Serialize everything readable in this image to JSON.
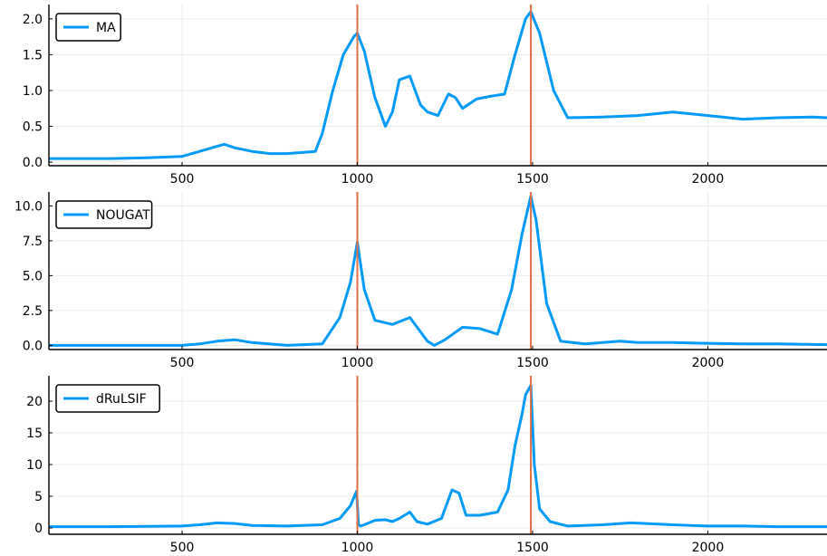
{
  "chart_data": [
    {
      "type": "line",
      "xlim": [
        120,
        2340
      ],
      "ylim": [
        -0.05,
        2.2
      ],
      "xticks": [
        500,
        1000,
        1500,
        2000
      ],
      "yticks": [
        0.0,
        0.5,
        1.0,
        1.5,
        2.0
      ],
      "ytick_labels": [
        "0.0",
        "0.5",
        "1.0",
        "1.5",
        "2.0"
      ],
      "grid": true,
      "legend_position": "top-left",
      "vlines": [
        1000,
        1495
      ],
      "vline_color": "#e26f46",
      "series": [
        {
          "name": "MA",
          "color": "#009af9",
          "x": [
            120,
            200,
            300,
            400,
            500,
            550,
            600,
            620,
            650,
            700,
            750,
            800,
            880,
            900,
            930,
            960,
            990,
            1000,
            1020,
            1050,
            1080,
            1100,
            1120,
            1150,
            1180,
            1200,
            1230,
            1260,
            1280,
            1300,
            1340,
            1380,
            1420,
            1450,
            1480,
            1495,
            1520,
            1560,
            1600,
            1700,
            1800,
            1900,
            2000,
            2100,
            2200,
            2300,
            2340
          ],
          "y": [
            0.05,
            0.05,
            0.05,
            0.06,
            0.08,
            0.15,
            0.22,
            0.25,
            0.2,
            0.15,
            0.12,
            0.12,
            0.15,
            0.4,
            1.0,
            1.5,
            1.75,
            1.8,
            1.55,
            0.9,
            0.5,
            0.7,
            1.15,
            1.2,
            0.8,
            0.7,
            0.65,
            0.95,
            0.9,
            0.75,
            0.88,
            0.92,
            0.95,
            1.5,
            2.0,
            2.1,
            1.8,
            1.0,
            0.62,
            0.63,
            0.65,
            0.7,
            0.65,
            0.6,
            0.62,
            0.63,
            0.62
          ]
        }
      ]
    },
    {
      "type": "line",
      "xlim": [
        120,
        2340
      ],
      "ylim": [
        -0.3,
        11.0
      ],
      "xticks": [
        500,
        1000,
        1500,
        2000
      ],
      "yticks": [
        0.0,
        2.5,
        5.0,
        7.5,
        10.0
      ],
      "ytick_labels": [
        "0.0",
        "2.5",
        "5.0",
        "7.5",
        "10.0"
      ],
      "grid": true,
      "legend_position": "top-left",
      "vlines": [
        1000,
        1495
      ],
      "vline_color": "#e26f46",
      "series": [
        {
          "name": "NOUGAT",
          "color": "#009af9",
          "x": [
            120,
            300,
            500,
            550,
            600,
            650,
            700,
            800,
            900,
            950,
            980,
            1000,
            1020,
            1050,
            1100,
            1150,
            1200,
            1220,
            1250,
            1300,
            1350,
            1400,
            1440,
            1470,
            1495,
            1510,
            1540,
            1580,
            1650,
            1750,
            1800,
            1900,
            2000,
            2100,
            2200,
            2340
          ],
          "y": [
            0.0,
            0.0,
            0.0,
            0.1,
            0.3,
            0.4,
            0.2,
            0.0,
            0.1,
            2.0,
            4.5,
            7.4,
            4.0,
            1.8,
            1.5,
            2.0,
            0.3,
            0.0,
            0.4,
            1.3,
            1.2,
            0.8,
            4.0,
            8.0,
            10.7,
            9.0,
            3.0,
            0.3,
            0.1,
            0.3,
            0.2,
            0.2,
            0.15,
            0.1,
            0.1,
            0.05
          ]
        }
      ]
    },
    {
      "type": "line",
      "xlim": [
        120,
        2340
      ],
      "ylim": [
        -1.0,
        24.0
      ],
      "xticks": [
        500,
        1000,
        1500,
        2000
      ],
      "yticks": [
        0,
        5,
        10,
        15,
        20
      ],
      "ytick_labels": [
        "0",
        "5",
        "10",
        "15",
        "20"
      ],
      "grid": true,
      "legend_position": "top-left",
      "vlines": [
        1000,
        1495
      ],
      "vline_color": "#e26f46",
      "series": [
        {
          "name": "dRuLSIF",
          "color": "#009af9",
          "x": [
            120,
            300,
            500,
            550,
            600,
            650,
            700,
            800,
            900,
            950,
            980,
            998,
            1003,
            1008,
            1020,
            1050,
            1080,
            1100,
            1120,
            1150,
            1170,
            1200,
            1240,
            1270,
            1290,
            1310,
            1330,
            1350,
            1400,
            1430,
            1450,
            1470,
            1480,
            1490,
            1495,
            1505,
            1520,
            1550,
            1600,
            1700,
            1780,
            1900,
            2000,
            2100,
            2200,
            2340
          ],
          "y": [
            0.2,
            0.2,
            0.3,
            0.5,
            0.8,
            0.7,
            0.4,
            0.3,
            0.5,
            1.5,
            3.5,
            5.8,
            0.6,
            0.3,
            0.5,
            1.2,
            1.3,
            1.0,
            1.5,
            2.5,
            1.0,
            0.6,
            1.5,
            6.0,
            5.5,
            2.0,
            2.0,
            2.0,
            2.5,
            6.0,
            13.0,
            18.0,
            21.0,
            22.0,
            22.5,
            10.0,
            3.0,
            1.0,
            0.3,
            0.5,
            0.8,
            0.5,
            0.3,
            0.3,
            0.2,
            0.2
          ]
        }
      ]
    }
  ]
}
